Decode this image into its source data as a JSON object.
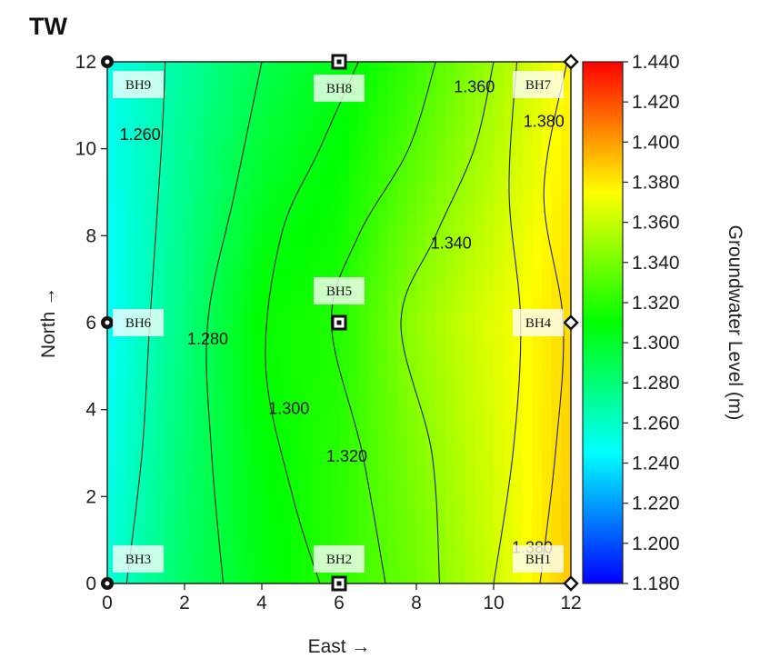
{
  "chart_data": {
    "type": "heatmap",
    "title": "TW",
    "xlabel": "East →",
    "ylabel": "North →",
    "xlim": [
      0,
      12
    ],
    "ylim": [
      0,
      12
    ],
    "xticks": [
      0,
      2,
      4,
      6,
      8,
      10,
      12
    ],
    "yticks": [
      0,
      2,
      4,
      6,
      8,
      10,
      12
    ],
    "colorbar": {
      "label": "Groundwater Level (m)",
      "min": 1.18,
      "max": 1.44,
      "ticks": [
        "1.440",
        "1.420",
        "1.400",
        "1.380",
        "1.360",
        "1.340",
        "1.320",
        "1.300",
        "1.280",
        "1.260",
        "1.240",
        "1.220",
        "1.200",
        "1.180"
      ],
      "colormap": [
        "#0000ff",
        "#00ffff",
        "#00ff00",
        "#ffff00",
        "#ff0000"
      ]
    },
    "boreholes": [
      {
        "name": "BH1",
        "x": 12,
        "y": 0,
        "marker": "diamond"
      },
      {
        "name": "BH2",
        "x": 6,
        "y": 0,
        "marker": "square"
      },
      {
        "name": "BH3",
        "x": 0,
        "y": 0,
        "marker": "circle"
      },
      {
        "name": "BH4",
        "x": 12,
        "y": 6,
        "marker": "diamond"
      },
      {
        "name": "BH5",
        "x": 6,
        "y": 6,
        "marker": "square"
      },
      {
        "name": "BH6",
        "x": 0,
        "y": 6,
        "marker": "circle"
      },
      {
        "name": "BH7",
        "x": 12,
        "y": 12,
        "marker": "diamond"
      },
      {
        "name": "BH8",
        "x": 6,
        "y": 12,
        "marker": "square"
      },
      {
        "name": "BH9",
        "x": 0,
        "y": 12,
        "marker": "circle"
      }
    ],
    "contours": [
      {
        "level": "1.260",
        "points": [
          [
            0.5,
            0
          ],
          [
            0.9,
            3
          ],
          [
            1.1,
            6
          ],
          [
            1.4,
            10
          ],
          [
            1.5,
            12
          ]
        ]
      },
      {
        "level": "1.280",
        "points": [
          [
            3,
            0
          ],
          [
            2.7,
            3
          ],
          [
            2.6,
            6
          ],
          [
            3.3,
            9
          ],
          [
            4,
            12
          ]
        ]
      },
      {
        "level": "1.300",
        "points": [
          [
            5.5,
            0
          ],
          [
            4.8,
            2
          ],
          [
            4.1,
            5
          ],
          [
            4.5,
            8
          ],
          [
            5.5,
            10
          ],
          [
            6.5,
            12
          ]
        ]
      },
      {
        "level": "1.320",
        "points": [
          [
            7.2,
            0
          ],
          [
            6.6,
            3
          ],
          [
            5.8,
            6
          ],
          [
            6.5,
            8
          ],
          [
            7.8,
            10
          ],
          [
            8.5,
            12
          ]
        ]
      },
      {
        "level": "1.340",
        "points": [
          [
            8.6,
            0
          ],
          [
            8.4,
            3
          ],
          [
            7.6,
            6
          ],
          [
            8.5,
            8
          ],
          [
            9.5,
            10
          ],
          [
            10,
            12
          ]
        ]
      },
      {
        "level": "1.360",
        "points": [
          [
            10,
            0
          ],
          [
            10.5,
            3
          ],
          [
            10.7,
            6
          ],
          [
            10.4,
            9
          ],
          [
            10.6,
            12
          ]
        ]
      },
      {
        "level": "1.380",
        "points": [
          [
            11.2,
            0
          ],
          [
            11.6,
            3
          ],
          [
            11.8,
            6
          ],
          [
            11.3,
            9
          ],
          [
            11.9,
            12
          ]
        ]
      }
    ],
    "contour_labels": [
      {
        "text": "1.260",
        "x": 0.85,
        "y": 10.3
      },
      {
        "text": "1.280",
        "x": 2.6,
        "y": 5.6
      },
      {
        "text": "1.300",
        "x": 4.7,
        "y": 4.0
      },
      {
        "text": "1.320",
        "x": 6.2,
        "y": 2.9
      },
      {
        "text": "1.340",
        "x": 8.9,
        "y": 7.8
      },
      {
        "text": "1.360",
        "x": 9.5,
        "y": 11.4
      },
      {
        "text": "1.380",
        "x": 11.3,
        "y": 10.6
      },
      {
        "text": "1.380",
        "x": 11.0,
        "y": 0.8
      }
    ],
    "field_samples": {
      "x": [
        0,
        2,
        4,
        6,
        8,
        10,
        12
      ],
      "y": [
        0,
        6,
        12
      ],
      "values": [
        [
          1.255,
          1.285,
          1.305,
          1.322,
          1.338,
          1.362,
          1.39
        ],
        [
          1.245,
          1.278,
          1.312,
          1.318,
          1.348,
          1.368,
          1.385
        ],
        [
          1.25,
          1.27,
          1.29,
          1.305,
          1.325,
          1.35,
          1.378
        ]
      ]
    }
  }
}
